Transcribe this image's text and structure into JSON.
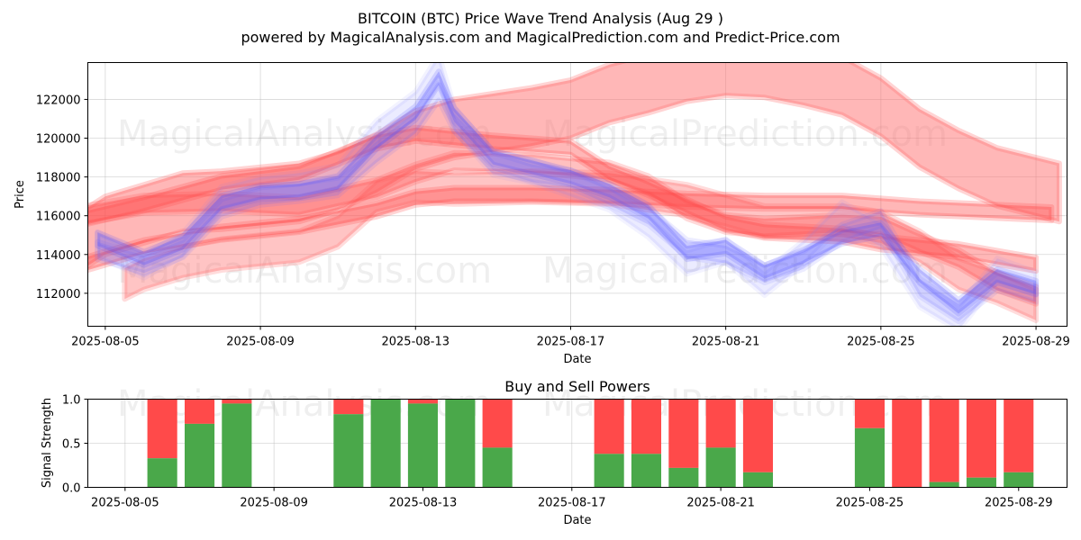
{
  "chart_data": [
    {
      "type": "area",
      "title": "BITCOIN (BTC) Price Wave Trend Analysis (Aug 29 )",
      "subtitle": "powered by MagicalAnalysis.com and MagicalPrediction.com and Predict-Price.com",
      "xlabel": "Date",
      "ylabel": "Price",
      "x_start": "2025-08-04",
      "xlim": [
        0.55,
        25.8
      ],
      "ylim": [
        110300,
        123900
      ],
      "x_ticks": [
        {
          "day": 1,
          "label": "2025-08-05"
        },
        {
          "day": 5,
          "label": "2025-08-09"
        },
        {
          "day": 9,
          "label": "2025-08-13"
        },
        {
          "day": 13,
          "label": "2025-08-17"
        },
        {
          "day": 17,
          "label": "2025-08-21"
        },
        {
          "day": 21,
          "label": "2025-08-25"
        },
        {
          "day": 25,
          "label": "2025-08-29"
        }
      ],
      "y_ticks": [
        {
          "value": 112000,
          "label": "112000"
        },
        {
          "value": 114000,
          "label": "114000"
        },
        {
          "value": 116000,
          "label": "116000"
        },
        {
          "value": 118000,
          "label": "118000"
        },
        {
          "value": 120000,
          "label": "120000"
        },
        {
          "value": 122000,
          "label": "122000"
        }
      ],
      "grid": true,
      "series": [
        {
          "name": "blue-wave-1",
          "color": "#4f4fff",
          "opacity": 0.28,
          "band": 700,
          "points": [
            [
              0.8,
              114800
            ],
            [
              2,
              113800
            ],
            [
              3,
              114600
            ],
            [
              4,
              116700
            ],
            [
              5,
              117200
            ],
            [
              6,
              117300
            ],
            [
              7,
              117700
            ],
            [
              8,
              119800
            ],
            [
              9,
              121300
            ],
            [
              9.6,
              123100
            ],
            [
              10,
              121200
            ],
            [
              11,
              119000
            ],
            [
              12,
              118500
            ],
            [
              13,
              118000
            ],
            [
              14,
              117300
            ],
            [
              15,
              116200
            ],
            [
              16,
              114100
            ],
            [
              17,
              114400
            ],
            [
              18,
              113100
            ],
            [
              19,
              113900
            ],
            [
              20,
              114900
            ],
            [
              21,
              115300
            ],
            [
              22,
              112900
            ],
            [
              23,
              111300
            ],
            [
              24,
              112900
            ],
            [
              25,
              112300
            ]
          ]
        },
        {
          "name": "blue-wave-2",
          "color": "#6464ff",
          "opacity": 0.2,
          "band": 900,
          "points": [
            [
              0.8,
              114200
            ],
            [
              2,
              113500
            ],
            [
              3,
              114300
            ],
            [
              4,
              116400
            ],
            [
              5,
              117000
            ],
            [
              6,
              117200
            ],
            [
              7,
              117500
            ],
            [
              8,
              119200
            ],
            [
              9,
              120700
            ],
            [
              9.6,
              122400
            ],
            [
              10,
              120800
            ],
            [
              11,
              118800
            ],
            [
              12,
              118200
            ],
            [
              13,
              117900
            ],
            [
              14,
              117000
            ],
            [
              15,
              116000
            ],
            [
              16,
              114300
            ],
            [
              17,
              114000
            ],
            [
              18,
              113000
            ],
            [
              19,
              113700
            ],
            [
              20,
              115100
            ],
            [
              21,
              115800
            ],
            [
              22,
              112300
            ],
            [
              23,
              111000
            ],
            [
              24,
              112600
            ],
            [
              25,
              112000
            ]
          ]
        },
        {
          "name": "blue-wave-3",
          "color": "#8080ff",
          "opacity": 0.16,
          "band": 1200,
          "points": [
            [
              0.8,
              114500
            ],
            [
              2,
              113400
            ],
            [
              3,
              114500
            ],
            [
              4,
              116900
            ],
            [
              5,
              117400
            ],
            [
              6,
              117600
            ],
            [
              7,
              118000
            ],
            [
              8,
              120300
            ],
            [
              9,
              121800
            ],
            [
              9.6,
              123700
            ],
            [
              10,
              121000
            ],
            [
              11,
              118700
            ],
            [
              12,
              118300
            ],
            [
              13,
              117600
            ],
            [
              14,
              116900
            ],
            [
              15,
              115500
            ],
            [
              16,
              113600
            ],
            [
              17,
              114200
            ],
            [
              18,
              112500
            ],
            [
              19,
              114100
            ],
            [
              20,
              116100
            ],
            [
              21,
              115000
            ],
            [
              22,
              111900
            ],
            [
              23,
              110700
            ],
            [
              24,
              113200
            ],
            [
              25,
              112500
            ]
          ]
        },
        {
          "name": "red-wave-1",
          "color": "#ff4a4a",
          "opacity": 0.4,
          "band": 700,
          "points": [
            [
              0.3,
              115800
            ],
            [
              2,
              116600
            ],
            [
              4,
              117700
            ],
            [
              6,
              118200
            ],
            [
              8,
              119800
            ],
            [
              9,
              120200
            ],
            [
              11,
              119800
            ],
            [
              13,
              119500
            ],
            [
              14,
              118200
            ],
            [
              15,
              117400
            ],
            [
              16,
              116500
            ],
            [
              17,
              115600
            ],
            [
              18,
              115200
            ],
            [
              20,
              115000
            ],
            [
              21,
              114600
            ],
            [
              23,
              114200
            ],
            [
              25,
              113500
            ]
          ]
        },
        {
          "name": "red-wave-2",
          "color": "#ff4a4a",
          "opacity": 0.4,
          "band": 700,
          "points": [
            [
              0.3,
              113400
            ],
            [
              2,
              114400
            ],
            [
              4,
              115100
            ],
            [
              6,
              115500
            ],
            [
              8,
              116300
            ],
            [
              9,
              116900
            ],
            [
              10,
              117100
            ],
            [
              12,
              117100
            ],
            [
              14,
              117000
            ],
            [
              16,
              116800
            ],
            [
              18,
              116700
            ],
            [
              20,
              116700
            ],
            [
              22,
              116400
            ],
            [
              25.4,
              116100
            ]
          ]
        },
        {
          "name": "red-wave-3",
          "color": "#ff4a4a",
          "opacity": 0.35,
          "band": 900,
          "points": [
            [
              0.3,
              116000
            ],
            [
              2,
              116600
            ],
            [
              4,
              116700
            ],
            [
              6,
              116500
            ],
            [
              8,
              117400
            ],
            [
              9,
              118200
            ],
            [
              10,
              118800
            ],
            [
              12,
              118700
            ],
            [
              14,
              118300
            ],
            [
              15,
              117600
            ],
            [
              16,
              116300
            ],
            [
              17,
              115600
            ],
            [
              18,
              115400
            ],
            [
              20,
              115600
            ],
            [
              21,
              115500
            ],
            [
              22,
              114600
            ],
            [
              23,
              113800
            ],
            [
              24,
              112600
            ],
            [
              25,
              111900
            ]
          ]
        },
        {
          "name": "red-wave-4",
          "color": "#ff6b6b",
          "opacity": 0.4,
          "band": 1600,
          "points": [
            [
              1.5,
              112500
            ],
            [
              2,
              113000
            ],
            [
              3,
              113600
            ],
            [
              4,
              114000
            ],
            [
              5,
              114200
            ],
            [
              6,
              114400
            ],
            [
              7,
              115200
            ],
            [
              8,
              117000
            ],
            [
              9,
              117500
            ],
            [
              10,
              117400
            ],
            [
              12,
              117500
            ],
            [
              14,
              117400
            ],
            [
              16,
              116800
            ],
            [
              18,
              115700
            ],
            [
              20,
              115700
            ],
            [
              21,
              115400
            ],
            [
              22,
              114400
            ],
            [
              23,
              113000
            ],
            [
              24,
              112300
            ],
            [
              25,
              111400
            ]
          ]
        },
        {
          "name": "red-big-band",
          "color": "#ff7070",
          "opacity": 0.5,
          "band": 3000,
          "points": [
            [
              0.3,
              114600
            ],
            [
              1,
              115500
            ],
            [
              2,
              116100
            ],
            [
              3,
              116700
            ],
            [
              4,
              116800
            ],
            [
              6,
              117200
            ],
            [
              7,
              117800
            ],
            [
              8,
              118700
            ],
            [
              9,
              119900
            ],
            [
              10,
              120500
            ],
            [
              11,
              120800
            ],
            [
              12,
              121100
            ],
            [
              13,
              121500
            ],
            [
              14,
              122300
            ],
            [
              15,
              122800
            ],
            [
              16,
              123400
            ],
            [
              17,
              123700
            ],
            [
              18,
              123600
            ],
            [
              19,
              123200
            ],
            [
              20,
              122700
            ],
            [
              21,
              121600
            ],
            [
              22,
              120000
            ],
            [
              23,
              118900
            ],
            [
              24,
              118000
            ],
            [
              25.6,
              117200
            ]
          ]
        }
      ],
      "watermarks": [
        "MagicalAnalysis.com",
        "MagicalPrediction.com",
        "MagicalAnalysis.com",
        "MagicalPrediction.com"
      ]
    },
    {
      "type": "bar",
      "title": "Buy and Sell Powers",
      "xlabel": "Date",
      "ylabel": "Signal Strength",
      "xlim": [
        0,
        26.3
      ],
      "ylim": [
        0,
        1.0
      ],
      "x_ticks": [
        {
          "day": 1,
          "label": "2025-08-05"
        },
        {
          "day": 5,
          "label": "2025-08-09"
        },
        {
          "day": 9,
          "label": "2025-08-13"
        },
        {
          "day": 13,
          "label": "2025-08-17"
        },
        {
          "day": 17,
          "label": "2025-08-21"
        },
        {
          "day": 21,
          "label": "2025-08-25"
        },
        {
          "day": 25,
          "label": "2025-08-29"
        }
      ],
      "y_ticks": [
        {
          "value": 0.0,
          "label": "0.0"
        },
        {
          "value": 0.5,
          "label": "0.5"
        },
        {
          "value": 1.0,
          "label": "1.0"
        }
      ],
      "buy_color": "#4aa84a",
      "sell_color": "#ff4a4a",
      "bars": [
        {
          "date": "2025-08-06",
          "day": 2,
          "buy": 0.33
        },
        {
          "date": "2025-08-07",
          "day": 3,
          "buy": 0.72
        },
        {
          "date": "2025-08-08",
          "day": 4,
          "buy": 0.95
        },
        {
          "date": "2025-08-11",
          "day": 7,
          "buy": 0.83
        },
        {
          "date": "2025-08-12",
          "day": 8,
          "buy": 1.0
        },
        {
          "date": "2025-08-13",
          "day": 9,
          "buy": 0.95
        },
        {
          "date": "2025-08-14",
          "day": 10,
          "buy": 1.0
        },
        {
          "date": "2025-08-15",
          "day": 11,
          "buy": 0.45
        },
        {
          "date": "2025-08-18",
          "day": 14,
          "buy": 0.38
        },
        {
          "date": "2025-08-19",
          "day": 15,
          "buy": 0.38
        },
        {
          "date": "2025-08-20",
          "day": 16,
          "buy": 0.22
        },
        {
          "date": "2025-08-21",
          "day": 17,
          "buy": 0.45
        },
        {
          "date": "2025-08-22",
          "day": 18,
          "buy": 0.17
        },
        {
          "date": "2025-08-25",
          "day": 21,
          "buy": 0.67
        },
        {
          "date": "2025-08-26",
          "day": 22,
          "buy": 0.0
        },
        {
          "date": "2025-08-27",
          "day": 23,
          "buy": 0.06
        },
        {
          "date": "2025-08-28",
          "day": 24,
          "buy": 0.11
        },
        {
          "date": "2025-08-29",
          "day": 25,
          "buy": 0.17
        }
      ],
      "watermarks": [
        "MagicalAnalysis.com",
        "MagicalPrediction.com"
      ]
    }
  ]
}
